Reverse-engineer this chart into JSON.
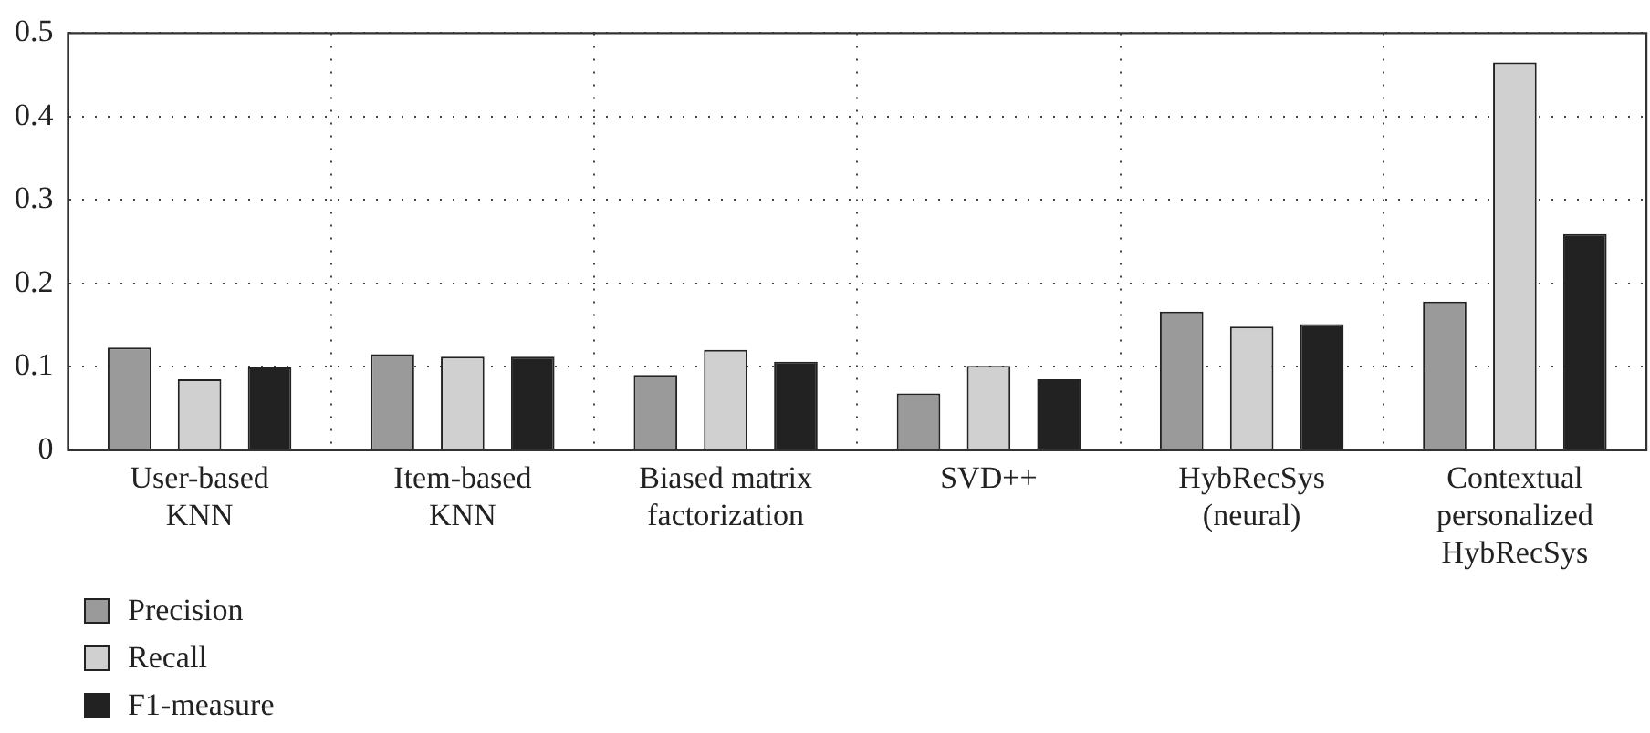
{
  "chart_data": {
    "type": "bar",
    "categories": [
      "User-based KNN",
      "Item-based KNN",
      "Biased matrix factorization",
      "SVD++",
      "HybRecSys (neural)",
      "Contextual personalized HybRecSys"
    ],
    "series": [
      {
        "name": "Precision",
        "color": "#9a9a9a",
        "values": [
          0.123,
          0.115,
          0.09,
          0.068,
          0.166,
          0.178
        ]
      },
      {
        "name": "Recall",
        "color": "#d0d0d0",
        "values": [
          0.085,
          0.112,
          0.12,
          0.101,
          0.148,
          0.465
        ]
      },
      {
        "name": "F1-measure",
        "color": "#222222",
        "values": [
          0.099,
          0.112,
          0.106,
          0.085,
          0.151,
          0.259
        ]
      }
    ],
    "ylim": [
      0,
      0.5
    ],
    "yticks": [
      0,
      0.1,
      0.2,
      0.3,
      0.4,
      0.5
    ],
    "grid": true,
    "legend": "bottom left"
  }
}
